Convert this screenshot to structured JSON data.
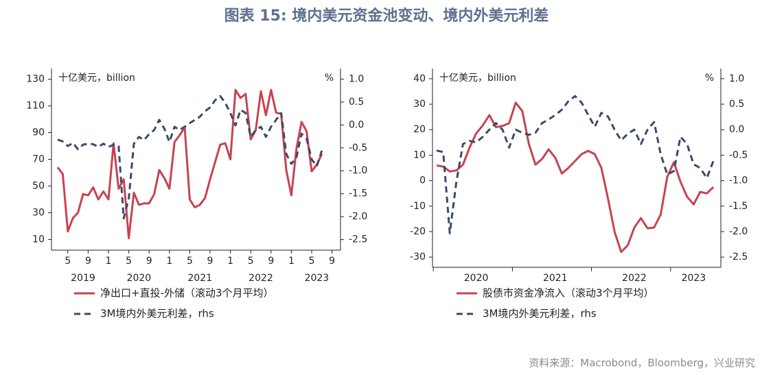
{
  "title": "图表 15: 境内美元资金池变动、境内外美元利差",
  "source": "资料来源：Macrobond，Bloomberg，兴业研究",
  "chart_data": [
    {
      "type": "line",
      "y_unit": "十亿美元，billion",
      "y2_unit": "%",
      "x": [
        "2019-03",
        "2019-04",
        "2019-05",
        "2019-06",
        "2019-07",
        "2019-08",
        "2019-09",
        "2019-10",
        "2019-11",
        "2019-12",
        "2020-01",
        "2020-02",
        "2020-03",
        "2020-04",
        "2020-05",
        "2020-06",
        "2020-07",
        "2020-08",
        "2020-09",
        "2020-10",
        "2020-11",
        "2020-12",
        "2021-01",
        "2021-02",
        "2021-03",
        "2021-04",
        "2021-05",
        "2021-06",
        "2021-07",
        "2021-08",
        "2021-09",
        "2021-10",
        "2021-11",
        "2021-12",
        "2022-01",
        "2022-02",
        "2022-03",
        "2022-04",
        "2022-05",
        "2022-06",
        "2022-07",
        "2022-08",
        "2022-09",
        "2022-10",
        "2022-11",
        "2022-12",
        "2023-01",
        "2023-02",
        "2023-03",
        "2023-04",
        "2023-05",
        "2023-06",
        "2023-07"
      ],
      "xticks": [
        {
          "value": "2019-05",
          "label": "5"
        },
        {
          "value": "2019-09",
          "label": "9"
        },
        {
          "value": "2020-01",
          "label": "1"
        },
        {
          "value": "2020-05",
          "label": "5"
        },
        {
          "value": "2020-09",
          "label": "9"
        },
        {
          "value": "2021-01",
          "label": "1"
        },
        {
          "value": "2021-05",
          "label": "5"
        },
        {
          "value": "2021-09",
          "label": "9"
        },
        {
          "value": "2022-01",
          "label": "1"
        },
        {
          "value": "2022-05",
          "label": "5"
        },
        {
          "value": "2022-09",
          "label": "9"
        },
        {
          "value": "2023-01",
          "label": "1"
        },
        {
          "value": "2023-05",
          "label": "5"
        },
        {
          "value": "2023-09",
          "label": "9"
        }
      ],
      "year_labels": [
        {
          "value": "2019-08",
          "label": "2019"
        },
        {
          "value": "2020-07",
          "label": "2020"
        },
        {
          "value": "2021-07",
          "label": "2021"
        },
        {
          "value": "2022-07",
          "label": "2022"
        },
        {
          "value": "2023-06",
          "label": "2023"
        }
      ],
      "ylim": [
        2,
        138
      ],
      "yticks": [
        10,
        30,
        50,
        70,
        90,
        110,
        130
      ],
      "y2lim": [
        -2.73,
        1.23
      ],
      "y2ticks": [
        {
          "value": 1,
          "label": "1.0"
        },
        0.5,
        {
          "value": 0,
          "label": "0.0"
        },
        -0.5,
        {
          "value": -1,
          "label": "-1.0"
        },
        -1.5,
        {
          "value": -2,
          "label": "-2.0"
        },
        -2.5
      ],
      "series": [
        {
          "name": "净出口+直投-外储（滚动3个月平均）",
          "color": "#c8424f",
          "line_style": "solid",
          "values": [
            64,
            59,
            16,
            26,
            30,
            44,
            43,
            49,
            40,
            46,
            40,
            82,
            48,
            55,
            11,
            45,
            36,
            37,
            37,
            44,
            62,
            56,
            48,
            83,
            88,
            94,
            40,
            34,
            36,
            41,
            55,
            68,
            81,
            82,
            70,
            122,
            116,
            119,
            85,
            92,
            121,
            103,
            122,
            105,
            104,
            62,
            43,
            78,
            98,
            91,
            61,
            66,
            74
          ]
        },
        {
          "name": "3M境内外美元利差，rhs",
          "color": "#3b4a6b",
          "line_style": "dashed",
          "axis": "y2",
          "values": [
            -0.32,
            -0.36,
            -0.46,
            -0.39,
            -0.53,
            -0.43,
            -0.41,
            -0.42,
            -0.48,
            -0.41,
            -0.48,
            -0.43,
            -0.46,
            -2.04,
            -1.6,
            -0.41,
            -0.26,
            -0.33,
            -0.2,
            -0.11,
            0.11,
            -0.08,
            -0.37,
            -0.04,
            -0.11,
            -0.04,
            0.04,
            0.11,
            0.18,
            0.3,
            0.38,
            0.54,
            0.63,
            0.48,
            0.26,
            -0.01,
            0.33,
            0.26,
            -0.26,
            -0.11,
            -0.04,
            -0.26,
            -0.04,
            0.11,
            0.26,
            -0.63,
            -0.85,
            -0.71,
            -0.19,
            -0.3,
            -0.75,
            -0.9,
            -0.56
          ]
        }
      ]
    },
    {
      "type": "line",
      "y_unit": "十亿美元，billion",
      "y2_unit": "%",
      "x": [
        "2020-01",
        "2020-02",
        "2020-03",
        "2020-04",
        "2020-05",
        "2020-06",
        "2020-07",
        "2020-08",
        "2020-09",
        "2020-10",
        "2020-11",
        "2020-12",
        "2021-01",
        "2021-02",
        "2021-03",
        "2021-04",
        "2021-05",
        "2021-06",
        "2021-07",
        "2021-08",
        "2021-09",
        "2021-10",
        "2021-11",
        "2021-12",
        "2022-01",
        "2022-02",
        "2022-03",
        "2022-04",
        "2022-05",
        "2022-06",
        "2022-07",
        "2022-08",
        "2022-09",
        "2022-10",
        "2022-11",
        "2022-12",
        "2023-01",
        "2023-02",
        "2023-03",
        "2023-04",
        "2023-05",
        "2023-06",
        "2023-07"
      ],
      "year_labels": [
        {
          "value": "2020-07",
          "label": "2020"
        },
        {
          "value": "2021-07",
          "label": "2021"
        },
        {
          "value": "2022-07",
          "label": "2022"
        },
        {
          "value": "2023-04",
          "label": "2023"
        }
      ],
      "ylim": [
        -34,
        44
      ],
      "yticks": [
        -30,
        -20,
        -10,
        0,
        10,
        20,
        30,
        40
      ],
      "y2lim": [
        -2.7,
        1.2
      ],
      "y2ticks": [
        {
          "value": 1,
          "label": "1.0"
        },
        0.5,
        {
          "value": 0,
          "label": "0.0"
        },
        -0.5,
        {
          "value": -1,
          "label": "-1.0"
        },
        -1.5,
        {
          "value": -2,
          "label": "-2.0"
        },
        -2.5
      ],
      "series": [
        {
          "name": "股债市资金净流入（滚动3个月平均）",
          "color": "#c8424f",
          "line_style": "solid",
          "values": [
            6,
            5.5,
            3.6,
            4,
            6.3,
            13,
            18.5,
            21.7,
            25.7,
            21,
            21.5,
            22.5,
            30.6,
            27.3,
            14.4,
            6.3,
            8.5,
            12.3,
            9,
            2.8,
            5,
            7.7,
            10.4,
            11.7,
            10.4,
            5,
            -7,
            -20,
            -28,
            -25.4,
            -18.4,
            -14.7,
            -18.7,
            -18.4,
            -13.3,
            1.5,
            7.2,
            -0.4,
            -6.3,
            -9.3,
            -4.4,
            -5,
            -2.5
          ]
        },
        {
          "name": "3M境内外美元利差，rhs",
          "color": "#3b4a6b",
          "line_style": "dashed",
          "axis": "y2",
          "values": [
            -0.41,
            -0.44,
            -2.03,
            -1.02,
            -0.28,
            -0.22,
            -0.25,
            -0.14,
            0,
            0.13,
            0,
            -0.35,
            0,
            -0.06,
            -0.1,
            -0.06,
            0.13,
            0.2,
            0.29,
            0.39,
            0.56,
            0.66,
            0.53,
            0.29,
            0.06,
            0.33,
            0.26,
            0,
            -0.21,
            -0.08,
            0,
            -0.28,
            0,
            0.15,
            -0.48,
            -0.88,
            -0.81,
            -0.14,
            -0.28,
            -0.68,
            -0.75,
            -0.95,
            -0.61
          ]
        }
      ]
    }
  ]
}
